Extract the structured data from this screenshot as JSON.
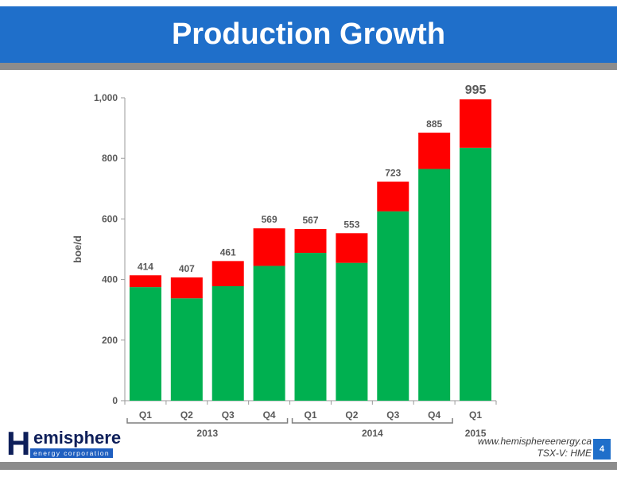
{
  "header": {
    "title": "Production Growth"
  },
  "colors": {
    "header_bg": "#1f6fca",
    "bar_base": "#00b050",
    "bar_top": "#ff0000",
    "rule": "#8c8c8c"
  },
  "chart_data": {
    "type": "bar",
    "stacked": true,
    "ylabel": "boe/d",
    "ylim": [
      0,
      1000
    ],
    "yticks": [
      "0",
      "200",
      "400",
      "600",
      "800",
      "1,000"
    ],
    "categories": [
      "Q1",
      "Q2",
      "Q3",
      "Q4",
      "Q1",
      "Q2",
      "Q3",
      "Q4",
      "Q1"
    ],
    "groups": [
      {
        "label": "2013",
        "start": 0,
        "end": 3
      },
      {
        "label": "2014",
        "start": 4,
        "end": 7
      },
      {
        "label": "2015",
        "start": 8,
        "end": 8
      }
    ],
    "series": [
      {
        "values": [
          375,
          338,
          378,
          445,
          488,
          455,
          625,
          765,
          835
        ],
        "color": "#00b050"
      },
      {
        "values": [
          39,
          69,
          83,
          124,
          79,
          98,
          98,
          120,
          160
        ],
        "color": "#ff0000"
      }
    ],
    "totals": [
      "414",
      "407",
      "461",
      "569",
      "567",
      "553",
      "723",
      "885",
      "995"
    ],
    "highlight_index": 8,
    "grid": false
  },
  "footer": {
    "logo_letter": "H",
    "logo_word": "emisphere",
    "logo_tagline": "energy corporation",
    "website": "www.hemisphereenergy.ca",
    "ticker": "TSX-V: HME",
    "page_number": "4"
  }
}
